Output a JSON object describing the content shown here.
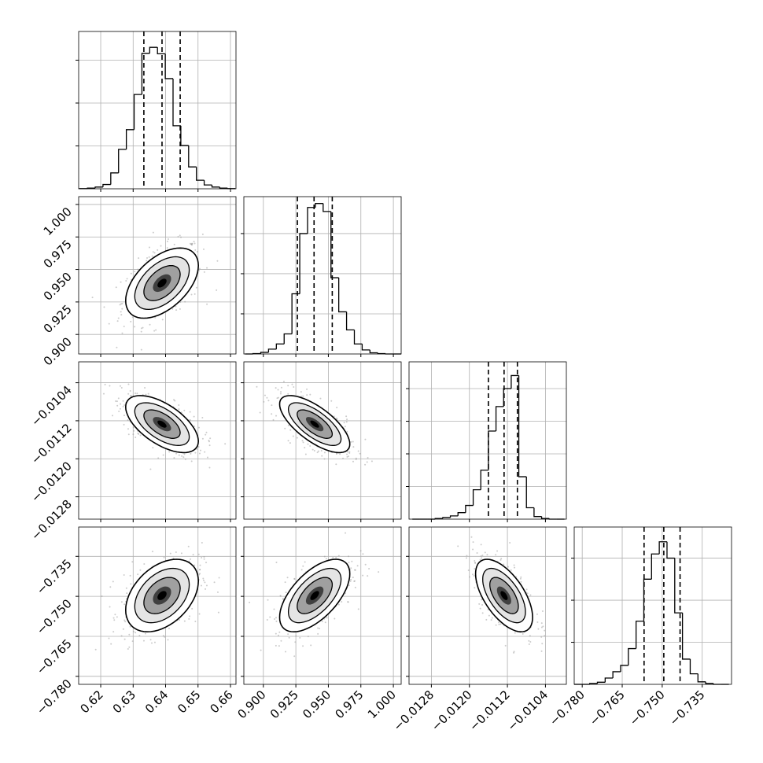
{
  "chart_data": {
    "type": "corner",
    "grid": true,
    "color": "#000000",
    "point_color": "#9a9a9a",
    "variables": [
      {
        "xlim": [
          0.6132,
          0.6617
        ],
        "xticks": [
          0.62,
          0.63,
          0.64,
          0.65,
          0.66
        ],
        "mean": 0.6389,
        "sd": 0.0056,
        "quantiles": [
          0.6333,
          0.6389,
          0.6445
        ],
        "bins": [
          0.6135,
          0.6159,
          0.6183,
          0.6207,
          0.6231,
          0.6255,
          0.6279,
          0.6303,
          0.6327,
          0.6351,
          0.6375,
          0.6399,
          0.6423,
          0.6447,
          0.6471,
          0.6495,
          0.6519,
          0.6543,
          0.6567,
          0.6591,
          0.6615
        ],
        "counts": [
          5,
          15,
          40,
          100,
          370,
          920,
          1380,
          2200,
          3160,
          3300,
          3150,
          2570,
          1470,
          1010,
          510,
          200,
          90,
          40,
          15,
          5
        ],
        "ylim": [
          0,
          3670
        ],
        "yticks": [
          1000,
          2000,
          3000
        ]
      },
      {
        "xlim": [
          0.885,
          1.006
        ],
        "xticks": [
          {
            "value": 0.9,
            "label": "0.900"
          },
          0.925,
          {
            "value": 0.95,
            "label": "0.950"
          },
          0.975,
          {
            "value": 1,
            "label": "1.000"
          }
        ],
        "mean": 0.9395,
        "sd": 0.0135,
        "quantiles": [
          0.9262,
          0.939,
          0.953
        ],
        "bins": [
          0.886,
          0.892,
          0.898,
          0.904,
          0.91,
          0.916,
          0.922,
          0.928,
          0.934,
          0.94,
          0.946,
          0.952,
          0.958,
          0.964,
          0.97,
          0.976,
          0.982,
          0.988,
          0.994,
          1.0,
          1.006
        ],
        "counts": [
          0,
          10,
          40,
          120,
          250,
          500,
          1500,
          3000,
          3650,
          3750,
          3550,
          1900,
          1050,
          600,
          250,
          100,
          30,
          10,
          0,
          0
        ],
        "ylim": [
          0,
          3920
        ],
        "yticks": [
          1000,
          2000,
          3000
        ]
      },
      {
        "xlim": [
          -0.01327,
          -0.00996
        ],
        "xticks": [
          {
            "value": -0.0128,
            "label": "−0.0128"
          },
          {
            "value": -0.012,
            "label": "−0.0120"
          },
          {
            "value": -0.0112,
            "label": "−0.0112"
          },
          {
            "value": -0.0104,
            "label": "−0.0104"
          }
        ],
        "mean": -0.01127,
        "sd": 0.0003,
        "quantiles": [
          -0.0116,
          -0.01127,
          -0.01099
        ],
        "bins": [
          -0.0132,
          -0.01304,
          -0.01288,
          -0.01272,
          -0.01256,
          -0.0124,
          -0.01224,
          -0.01208,
          -0.01192,
          -0.01176,
          -0.0116,
          -0.01144,
          -0.01128,
          -0.01112,
          -0.01096,
          -0.0108,
          -0.01064,
          -0.01048,
          -0.01032,
          -0.01016,
          -0.01
        ],
        "counts": [
          0,
          0,
          0,
          20,
          50,
          100,
          200,
          420,
          900,
          1500,
          2700,
          3450,
          4000,
          4400,
          1300,
          350,
          80,
          20,
          0,
          0
        ],
        "ylim": [
          0,
          4820
        ],
        "yticks": [
          1000,
          2000,
          3000,
          4000
        ]
      },
      {
        "xlim": [
          -0.783,
          -0.724
        ],
        "xticks": [
          {
            "value": -0.78,
            "label": "−0.780"
          },
          {
            "value": -0.765,
            "label": "−0.765"
          },
          {
            "value": -0.75,
            "label": "−0.750"
          },
          {
            "value": -0.735,
            "label": "−0.735"
          }
        ],
        "mean": -0.7497,
        "sd": 0.0068,
        "quantiles": [
          -0.7568,
          -0.7494,
          -0.7433
        ],
        "bins": [
          -0.783,
          -0.7801,
          -0.7772,
          -0.7743,
          -0.7714,
          -0.7685,
          -0.7656,
          -0.7627,
          -0.7598,
          -0.7569,
          -0.754,
          -0.7511,
          -0.7482,
          -0.7453,
          -0.7424,
          -0.7395,
          -0.7366,
          -0.7337,
          -0.7308,
          -0.7279,
          -0.725
        ],
        "counts": [
          0,
          0,
          20,
          50,
          150,
          300,
          450,
          850,
          1500,
          2500,
          3100,
          3390,
          3000,
          1700,
          600,
          250,
          60,
          20,
          0,
          0
        ],
        "ylim": [
          0,
          3740
        ],
        "yticks": [
          1000,
          2000,
          3000
        ]
      }
    ],
    "pairs": [
      {
        "x": 0,
        "y": 1,
        "corr": 0.5
      },
      {
        "x": 0,
        "y": 2,
        "corr": -0.6
      },
      {
        "x": 1,
        "y": 2,
        "corr": -0.7
      },
      {
        "x": 0,
        "y": 3,
        "corr": 0.4
      },
      {
        "x": 1,
        "y": 3,
        "corr": 0.6
      },
      {
        "x": 2,
        "y": 3,
        "corr": -0.6
      }
    ]
  }
}
